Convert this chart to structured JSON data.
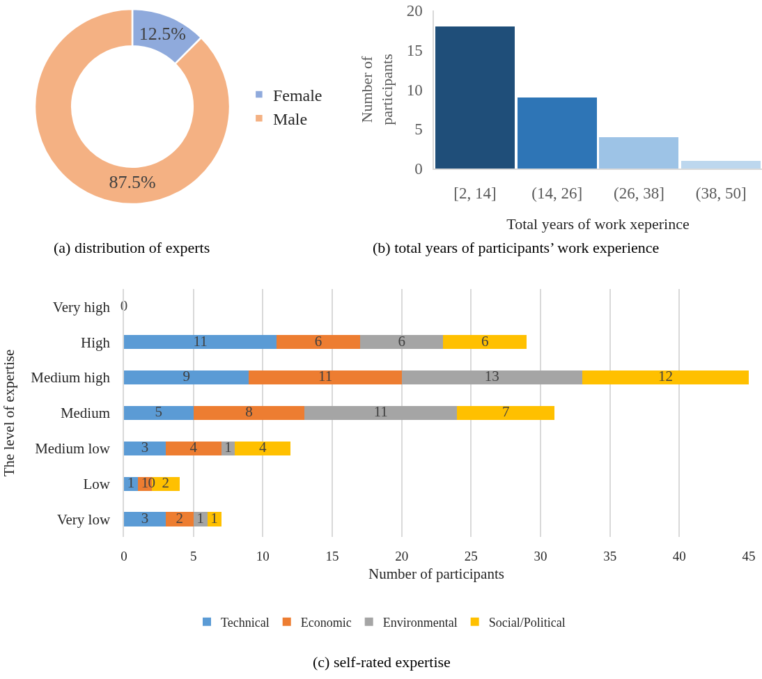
{
  "chart_data": [
    {
      "type": "donut",
      "categories": [
        "Female",
        "Male"
      ],
      "values": [
        12.5,
        87.5
      ],
      "colors": [
        "#8faadc",
        "#f4b183"
      ],
      "value_labels": [
        "12.5%",
        "87.5%"
      ],
      "legend": "right",
      "annotations": [
        "(a) distribution of experts"
      ]
    },
    {
      "type": "bar",
      "categories": [
        "[2, 14]",
        "(14, 26]",
        "(26, 38]",
        "(38, 50]"
      ],
      "values": [
        18,
        9,
        4,
        1
      ],
      "colors": [
        "#1f4e79",
        "#2e75b6",
        "#9dc3e6",
        "#bdd7ee"
      ],
      "xlabel": "Total years of work xeperince",
      "ylabel": "Number of\nparticipants",
      "ylim": [
        0,
        20
      ],
      "yticks": [
        0,
        5,
        10,
        15,
        20
      ],
      "annotations": [
        "(b) total years of participants’ work experience"
      ]
    },
    {
      "type": "bar",
      "orientation": "horizontal",
      "stacked": true,
      "categories": [
        "Very high",
        "High",
        "Medium high",
        "Medium",
        "Medium low",
        "Low",
        "Very low"
      ],
      "series": [
        {
          "name": "Technical",
          "color": "#5b9bd5",
          "values": [
            0,
            11,
            9,
            5,
            3,
            1,
            3
          ],
          "value_labels": [
            "0",
            "11",
            "9",
            "5",
            "3",
            "1",
            "3"
          ]
        },
        {
          "name": "Economic",
          "color": "#ed7d31",
          "values": [
            0,
            6,
            11,
            8,
            4,
            1,
            2
          ],
          "value_labels": [
            null,
            "6",
            "11",
            "8",
            "4",
            "1",
            "2"
          ]
        },
        {
          "name": "Environmental",
          "color": "#a5a5a5",
          "values": [
            0,
            6,
            13,
            11,
            1,
            0,
            1
          ],
          "value_labels": [
            null,
            "6",
            "13",
            "11",
            "1",
            "0",
            "1"
          ]
        },
        {
          "name": "Social/Political",
          "color": "#ffc000",
          "values": [
            0,
            6,
            12,
            7,
            4,
            2,
            1
          ],
          "value_labels": [
            null,
            "6",
            "12",
            "7",
            "4",
            "2",
            "1"
          ]
        }
      ],
      "xlim": [
        0,
        45
      ],
      "xticks": [
        0,
        5,
        10,
        15,
        20,
        25,
        30,
        35,
        40,
        45
      ],
      "xlabel": "Number of participants",
      "ylabel": "The level of expertise",
      "grid": "x",
      "legend": "bottom",
      "annotations": [
        "(c) self-rated expertise"
      ]
    }
  ]
}
